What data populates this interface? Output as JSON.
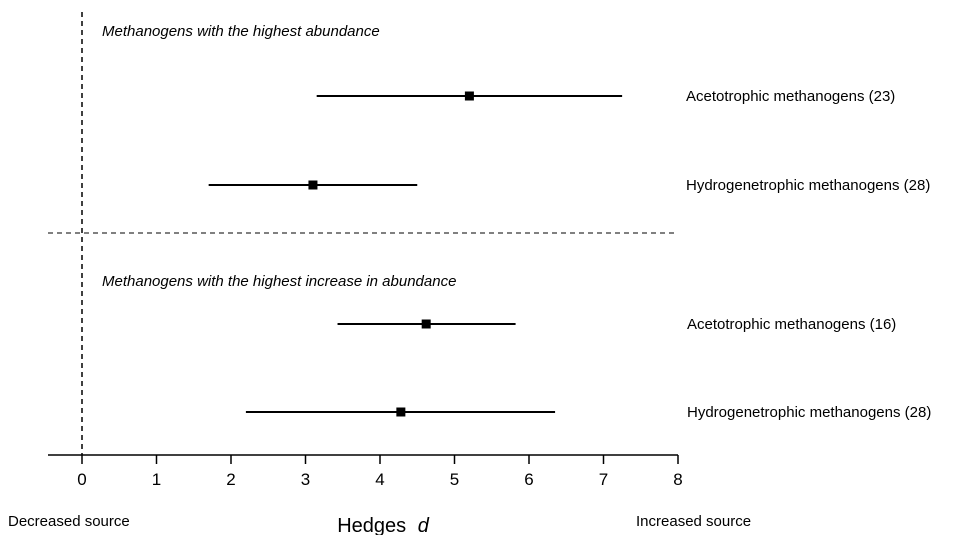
{
  "chart_data": {
    "type": "forest",
    "xlabel": "Hedges",
    "xlabel_var": "d",
    "xlim": [
      -0.5,
      8
    ],
    "xticks": [
      0,
      1,
      2,
      3,
      4,
      5,
      6,
      7,
      8
    ],
    "reference_line_x": 0,
    "left_note": "Decreased source",
    "right_note": "Increased source",
    "sections": [
      {
        "title": "Methanogens with  the highest abundance",
        "rows": [
          {
            "label": "Acetotrophic methanogens (23)",
            "estimate": 5.2,
            "ci_low": 3.15,
            "ci_high": 7.25
          },
          {
            "label": "Hydrogenetrophic methanogens (28)",
            "estimate": 3.1,
            "ci_low": 1.7,
            "ci_high": 4.5
          }
        ]
      },
      {
        "title": "Methanogens with the highest increase in abundance",
        "rows": [
          {
            "label": "Acetotrophic methanogens (16)",
            "estimate": 4.62,
            "ci_low": 3.43,
            "ci_high": 5.82
          },
          {
            "label": "Hydrogenetrophic methanogens (28)",
            "estimate": 4.28,
            "ci_low": 2.2,
            "ci_high": 6.35
          }
        ]
      }
    ]
  }
}
